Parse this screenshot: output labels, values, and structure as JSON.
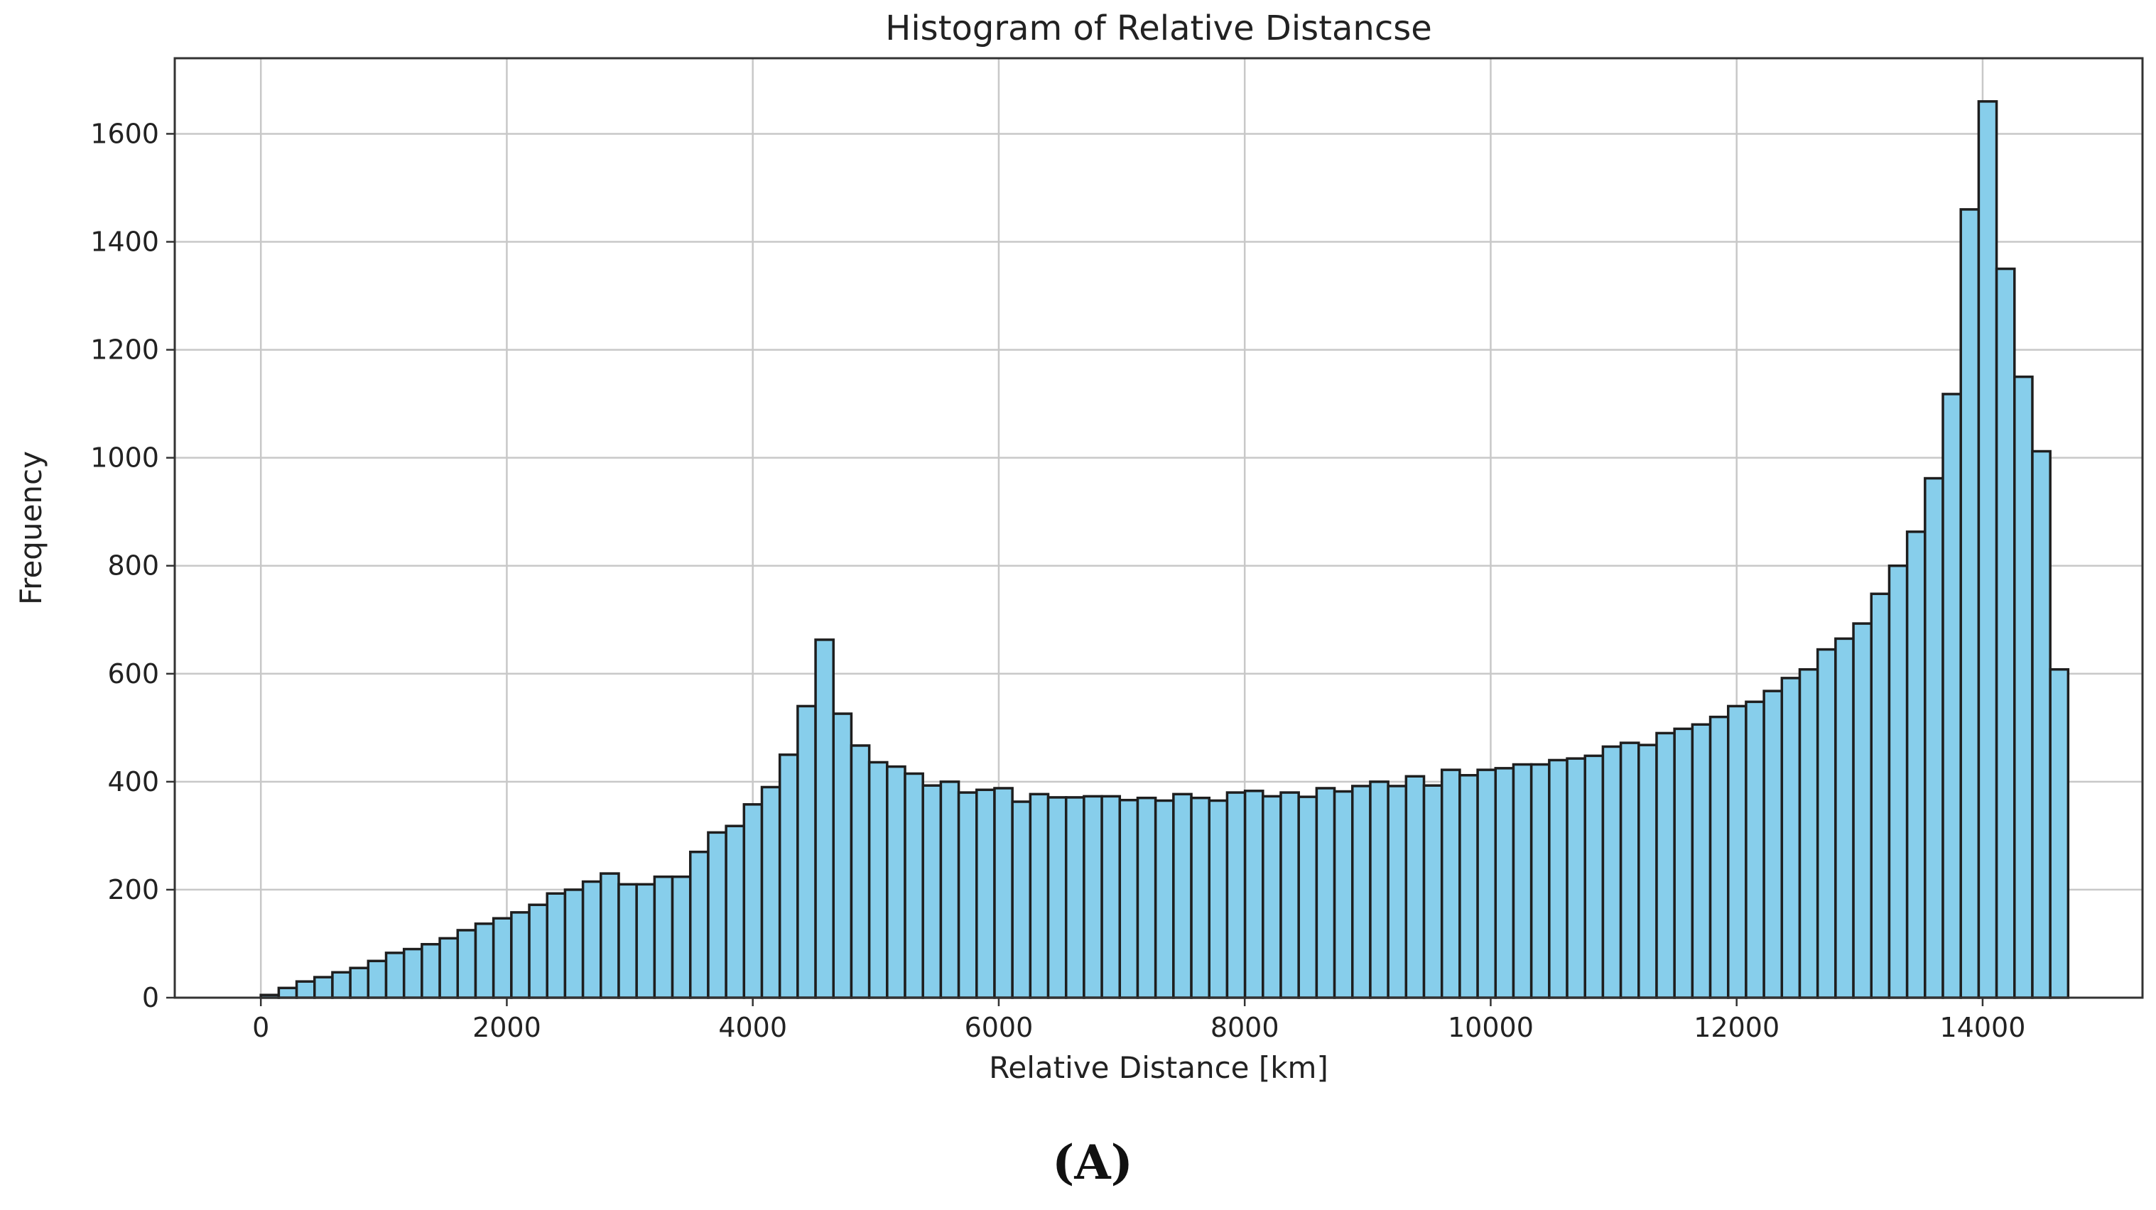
{
  "caption": "(A)",
  "chart_data": {
    "type": "bar",
    "title": "Histogram of Relative Distancse",
    "xlabel": "Relative Distance [km]",
    "ylabel": "Frequency",
    "xlim": [
      -700,
      15300
    ],
    "ylim": [
      0,
      1740
    ],
    "xticks": [
      0,
      2000,
      4000,
      6000,
      8000,
      10000,
      12000,
      14000
    ],
    "yticks": [
      0,
      200,
      400,
      600,
      800,
      1000,
      1200,
      1400,
      1600
    ],
    "grid": true,
    "bar_color": "#87ceeb",
    "edge_color": "#1e1e1e",
    "bin_start": 0,
    "bin_width": 145.5,
    "values": [
      5,
      18,
      30,
      38,
      47,
      55,
      68,
      83,
      90,
      99,
      110,
      125,
      137,
      147,
      158,
      172,
      193,
      200,
      215,
      230,
      210,
      210,
      224,
      224,
      270,
      306,
      318,
      358,
      390,
      450,
      540,
      663,
      526,
      467,
      436,
      428,
      415,
      393,
      400,
      380,
      385,
      388,
      363,
      377,
      371,
      371,
      373,
      373,
      366,
      370,
      365,
      377,
      370,
      365,
      380,
      383,
      373,
      380,
      372,
      388,
      382,
      392,
      400,
      392,
      410,
      393,
      422,
      412,
      422,
      425,
      432,
      432,
      440,
      443,
      448,
      465,
      472,
      468,
      490,
      498,
      506,
      520,
      540,
      548,
      568,
      592,
      608,
      645,
      665,
      693,
      748,
      800,
      863,
      962,
      1118,
      1460,
      1660,
      1350,
      1150,
      1012,
      608
    ]
  }
}
